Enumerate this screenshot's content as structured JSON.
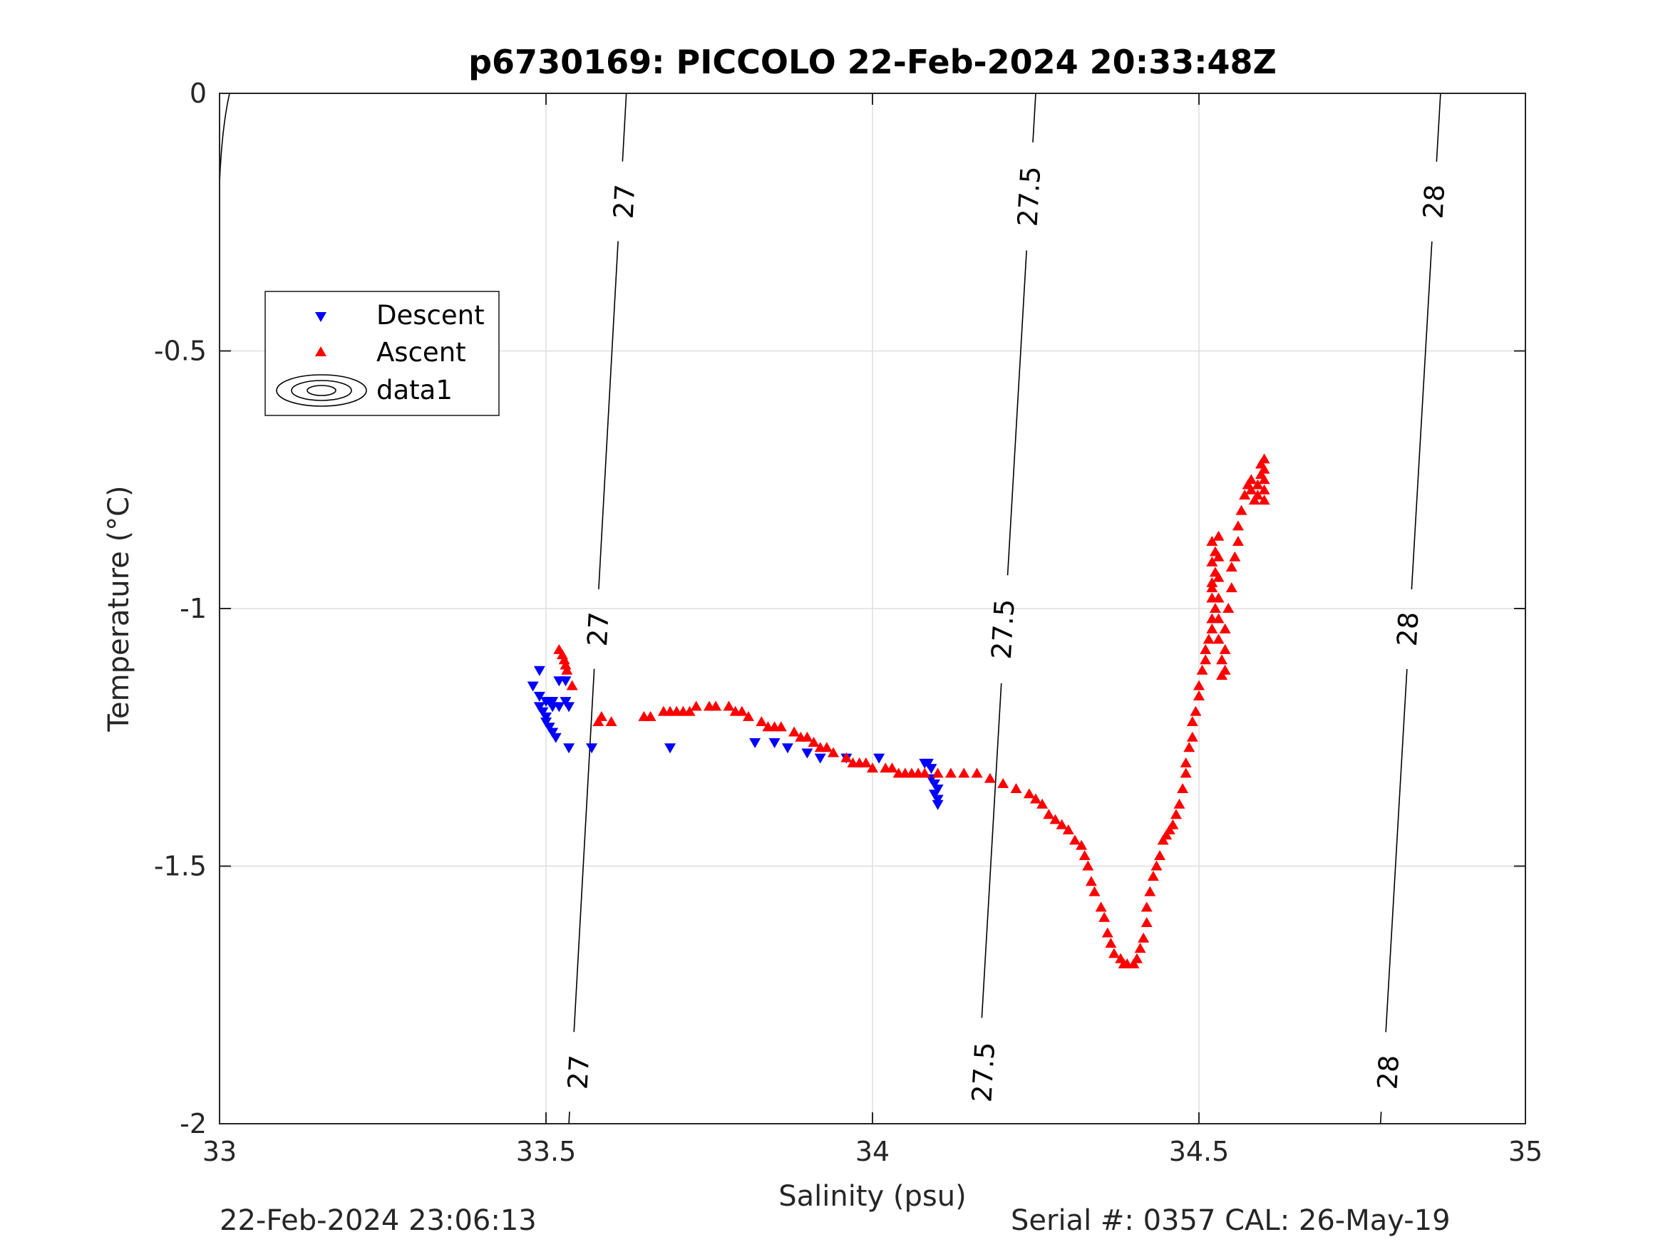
{
  "chart_data": {
    "type": "scatter",
    "title": "p6730169: PICCOLO 22-Feb-2024 20:33:48Z",
    "xlabel": "Salinity (psu)",
    "ylabel": "Temperature (°C)",
    "xlim": [
      33,
      35
    ],
    "ylim": [
      -2,
      0
    ],
    "xticks": [
      "33",
      "33.5",
      "34",
      "34.5",
      "35"
    ],
    "yticks": [
      "0",
      "-0.5",
      "-1",
      "-1.5",
      "-2"
    ],
    "grid": true,
    "legend_position": "upper-left",
    "legend": [
      "Descent",
      "Ascent",
      "data1"
    ],
    "series": [
      {
        "name": "Descent",
        "marker": "triangle-down",
        "color": "#0000ff",
        "points": [
          [
            33.48,
            -1.15
          ],
          [
            33.49,
            -1.12
          ],
          [
            33.49,
            -1.17
          ],
          [
            33.49,
            -1.19
          ],
          [
            33.495,
            -1.2
          ],
          [
            33.5,
            -1.21
          ],
          [
            33.5,
            -1.18
          ],
          [
            33.505,
            -1.18
          ],
          [
            33.51,
            -1.18
          ],
          [
            33.5,
            -1.22
          ],
          [
            33.505,
            -1.23
          ],
          [
            33.51,
            -1.24
          ],
          [
            33.515,
            -1.25
          ],
          [
            33.51,
            -1.19
          ],
          [
            33.52,
            -1.19
          ],
          [
            33.52,
            -1.14
          ],
          [
            33.53,
            -1.14
          ],
          [
            33.535,
            -1.19
          ],
          [
            33.53,
            -1.18
          ],
          [
            33.535,
            -1.27
          ],
          [
            33.57,
            -1.27
          ],
          [
            33.69,
            -1.27
          ],
          [
            33.82,
            -1.26
          ],
          [
            33.85,
            -1.26
          ],
          [
            33.87,
            -1.27
          ],
          [
            33.9,
            -1.28
          ],
          [
            33.92,
            -1.29
          ],
          [
            33.96,
            -1.29
          ],
          [
            34.01,
            -1.29
          ],
          [
            34.08,
            -1.3
          ],
          [
            34.085,
            -1.3
          ],
          [
            34.09,
            -1.31
          ],
          [
            34.09,
            -1.33
          ],
          [
            34.095,
            -1.34
          ],
          [
            34.1,
            -1.35
          ],
          [
            34.095,
            -1.36
          ],
          [
            34.1,
            -1.37
          ],
          [
            34.1,
            -1.38
          ]
        ]
      },
      {
        "name": "Ascent",
        "marker": "triangle-up",
        "color": "#ff0000",
        "points": [
          [
            33.52,
            -1.08
          ],
          [
            33.525,
            -1.09
          ],
          [
            33.528,
            -1.1
          ],
          [
            33.53,
            -1.11
          ],
          [
            33.532,
            -1.12
          ],
          [
            33.54,
            -1.15
          ],
          [
            33.58,
            -1.22
          ],
          [
            33.585,
            -1.21
          ],
          [
            33.6,
            -1.22
          ],
          [
            33.65,
            -1.21
          ],
          [
            33.66,
            -1.21
          ],
          [
            33.68,
            -1.2
          ],
          [
            33.69,
            -1.2
          ],
          [
            33.7,
            -1.2
          ],
          [
            33.71,
            -1.2
          ],
          [
            33.72,
            -1.2
          ],
          [
            33.73,
            -1.19
          ],
          [
            33.75,
            -1.19
          ],
          [
            33.76,
            -1.19
          ],
          [
            33.78,
            -1.19
          ],
          [
            33.79,
            -1.2
          ],
          [
            33.8,
            -1.2
          ],
          [
            33.81,
            -1.21
          ],
          [
            33.83,
            -1.22
          ],
          [
            33.84,
            -1.23
          ],
          [
            33.85,
            -1.23
          ],
          [
            33.86,
            -1.23
          ],
          [
            33.88,
            -1.24
          ],
          [
            33.89,
            -1.25
          ],
          [
            33.9,
            -1.25
          ],
          [
            33.91,
            -1.26
          ],
          [
            33.92,
            -1.27
          ],
          [
            33.93,
            -1.27
          ],
          [
            33.94,
            -1.28
          ],
          [
            33.96,
            -1.29
          ],
          [
            33.97,
            -1.3
          ],
          [
            33.98,
            -1.3
          ],
          [
            33.99,
            -1.3
          ],
          [
            34.0,
            -1.31
          ],
          [
            34.02,
            -1.31
          ],
          [
            34.03,
            -1.31
          ],
          [
            34.04,
            -1.32
          ],
          [
            34.05,
            -1.32
          ],
          [
            34.06,
            -1.32
          ],
          [
            34.07,
            -1.32
          ],
          [
            34.08,
            -1.32
          ],
          [
            34.1,
            -1.32
          ],
          [
            34.12,
            -1.32
          ],
          [
            34.14,
            -1.32
          ],
          [
            34.16,
            -1.32
          ],
          [
            34.18,
            -1.33
          ],
          [
            34.2,
            -1.34
          ],
          [
            34.22,
            -1.35
          ],
          [
            34.24,
            -1.36
          ],
          [
            34.25,
            -1.37
          ],
          [
            34.26,
            -1.38
          ],
          [
            34.27,
            -1.4
          ],
          [
            34.28,
            -1.41
          ],
          [
            34.29,
            -1.42
          ],
          [
            34.3,
            -1.43
          ],
          [
            34.31,
            -1.45
          ],
          [
            34.32,
            -1.46
          ],
          [
            34.325,
            -1.48
          ],
          [
            34.33,
            -1.5
          ],
          [
            34.335,
            -1.53
          ],
          [
            34.34,
            -1.55
          ],
          [
            34.35,
            -1.58
          ],
          [
            34.355,
            -1.6
          ],
          [
            34.36,
            -1.63
          ],
          [
            34.365,
            -1.65
          ],
          [
            34.37,
            -1.67
          ],
          [
            34.38,
            -1.68
          ],
          [
            34.385,
            -1.69
          ],
          [
            34.39,
            -1.69
          ],
          [
            34.4,
            -1.69
          ],
          [
            34.405,
            -1.68
          ],
          [
            34.41,
            -1.66
          ],
          [
            34.415,
            -1.64
          ],
          [
            34.42,
            -1.61
          ],
          [
            34.42,
            -1.58
          ],
          [
            34.425,
            -1.55
          ],
          [
            34.43,
            -1.52
          ],
          [
            34.435,
            -1.5
          ],
          [
            34.44,
            -1.48
          ],
          [
            34.445,
            -1.45
          ],
          [
            34.45,
            -1.44
          ],
          [
            34.455,
            -1.43
          ],
          [
            34.46,
            -1.42
          ],
          [
            34.465,
            -1.4
          ],
          [
            34.47,
            -1.38
          ],
          [
            34.475,
            -1.35
          ],
          [
            34.48,
            -1.32
          ],
          [
            34.48,
            -1.3
          ],
          [
            34.485,
            -1.27
          ],
          [
            34.49,
            -1.25
          ],
          [
            34.49,
            -1.22
          ],
          [
            34.495,
            -1.2
          ],
          [
            34.5,
            -1.17
          ],
          [
            34.5,
            -1.15
          ],
          [
            34.505,
            -1.12
          ],
          [
            34.51,
            -1.1
          ],
          [
            34.51,
            -1.08
          ],
          [
            34.515,
            -1.06
          ],
          [
            34.52,
            -1.04
          ],
          [
            34.52,
            -1.02
          ],
          [
            34.525,
            -1.0
          ],
          [
            34.52,
            -0.98
          ],
          [
            34.52,
            -0.96
          ],
          [
            34.52,
            -0.95
          ],
          [
            34.525,
            -0.93
          ],
          [
            34.52,
            -0.91
          ],
          [
            34.525,
            -0.89
          ],
          [
            34.52,
            -0.87
          ],
          [
            34.53,
            -0.86
          ],
          [
            34.53,
            -0.9
          ],
          [
            34.53,
            -0.94
          ],
          [
            34.53,
            -0.98
          ],
          [
            34.53,
            -1.02
          ],
          [
            34.53,
            -1.06
          ],
          [
            34.535,
            -1.1
          ],
          [
            34.535,
            -1.13
          ],
          [
            34.54,
            -1.12
          ],
          [
            34.54,
            -1.08
          ],
          [
            34.54,
            -1.04
          ],
          [
            34.545,
            -1.0
          ],
          [
            34.55,
            -0.96
          ],
          [
            34.55,
            -0.92
          ],
          [
            34.555,
            -0.9
          ],
          [
            34.56,
            -0.87
          ],
          [
            34.56,
            -0.84
          ],
          [
            34.565,
            -0.81
          ],
          [
            34.57,
            -0.78
          ],
          [
            34.575,
            -0.76
          ],
          [
            34.58,
            -0.75
          ],
          [
            34.58,
            -0.77
          ],
          [
            34.585,
            -0.79
          ],
          [
            34.59,
            -0.78
          ],
          [
            34.59,
            -0.76
          ],
          [
            34.595,
            -0.74
          ],
          [
            34.595,
            -0.72
          ],
          [
            34.6,
            -0.71
          ],
          [
            34.6,
            -0.73
          ],
          [
            34.6,
            -0.75
          ],
          [
            34.6,
            -0.77
          ],
          [
            34.6,
            -0.79
          ]
        ]
      }
    ],
    "isopycnals": [
      {
        "label": "27",
        "line": [
          [
            33.623,
            0
          ],
          [
            33.535,
            -2
          ]
        ],
        "label_positions": [
          [
            33.62,
            -0.21
          ],
          [
            33.58,
            -1.04
          ],
          [
            33.55,
            -1.9
          ]
        ]
      },
      {
        "label": "27.5",
        "line": [
          [
            34.25,
            0
          ],
          [
            34.158,
            -2
          ]
        ],
        "label_positions": [
          [
            34.24,
            -0.2
          ],
          [
            34.2,
            -1.04
          ],
          [
            34.17,
            -1.9
          ]
        ]
      },
      {
        "label": "28",
        "line": [
          [
            34.87,
            0
          ],
          [
            34.778,
            -2
          ]
        ],
        "label_positions": [
          [
            34.86,
            -0.21
          ],
          [
            34.82,
            -1.04
          ],
          [
            34.79,
            -1.9
          ]
        ]
      }
    ]
  },
  "footer": {
    "date": "22-Feb-2024 23:06:13",
    "serial": "Serial #: 0357  CAL: 26-May-19"
  }
}
